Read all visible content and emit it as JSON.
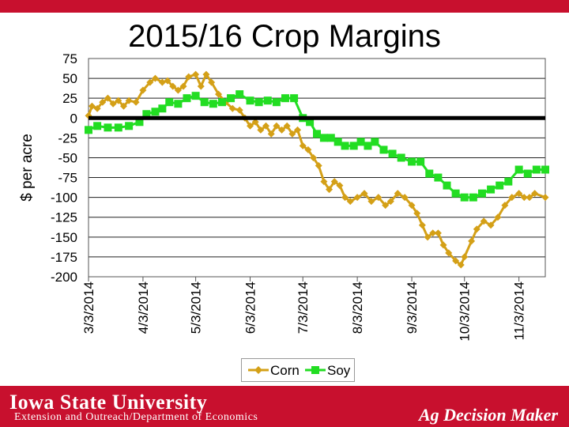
{
  "header": {
    "accent_color": "#c8102e"
  },
  "footer": {
    "university": "Iowa State University",
    "department": "Extension and Outreach/Department of Economics",
    "brand": "Ag Decision Maker",
    "background": "#c8102e"
  },
  "chart_data": {
    "type": "line",
    "title": "2015/16 Crop Margins",
    "xlabel": "",
    "ylabel": "$ per acre",
    "ylim": [
      -200,
      75
    ],
    "yticks": [
      75,
      50,
      25,
      0,
      -25,
      -50,
      -75,
      -100,
      -125,
      -150,
      -175,
      -200
    ],
    "xlim": [
      "2014-03-03",
      "2014-11-18"
    ],
    "xticks": [
      "3/3/2014",
      "4/3/2014",
      "5/3/2014",
      "6/3/2014",
      "7/3/2014",
      "8/3/2014",
      "9/3/2014",
      "10/3/2014",
      "11/3/2014"
    ],
    "xtick_dates": [
      "2014-03-03",
      "2014-04-03",
      "2014-05-03",
      "2014-06-03",
      "2014-07-03",
      "2014-08-03",
      "2014-09-03",
      "2014-10-03",
      "2014-11-03"
    ],
    "grid": "horizontal",
    "zero_line": true,
    "legend_position": "bottom",
    "series": [
      {
        "name": "Corn",
        "color": "#d4a017",
        "marker": "diamond",
        "points": [
          [
            "2014-03-03",
            3
          ],
          [
            "2014-03-05",
            15
          ],
          [
            "2014-03-08",
            12
          ],
          [
            "2014-03-11",
            20
          ],
          [
            "2014-03-14",
            25
          ],
          [
            "2014-03-17",
            18
          ],
          [
            "2014-03-20",
            22
          ],
          [
            "2014-03-23",
            15
          ],
          [
            "2014-03-26",
            22
          ],
          [
            "2014-03-30",
            20
          ],
          [
            "2014-04-03",
            35
          ],
          [
            "2014-04-07",
            45
          ],
          [
            "2014-04-10",
            50
          ],
          [
            "2014-04-14",
            45
          ],
          [
            "2014-04-17",
            47
          ],
          [
            "2014-04-20",
            40
          ],
          [
            "2014-04-23",
            35
          ],
          [
            "2014-04-26",
            40
          ],
          [
            "2014-04-29",
            52
          ],
          [
            "2014-05-03",
            55
          ],
          [
            "2014-05-06",
            40
          ],
          [
            "2014-05-09",
            55
          ],
          [
            "2014-05-12",
            45
          ],
          [
            "2014-05-16",
            30
          ],
          [
            "2014-05-20",
            20
          ],
          [
            "2014-05-24",
            12
          ],
          [
            "2014-05-28",
            10
          ],
          [
            "2014-05-31",
            0
          ],
          [
            "2014-06-03",
            -10
          ],
          [
            "2014-06-06",
            -5
          ],
          [
            "2014-06-09",
            -15
          ],
          [
            "2014-06-12",
            -10
          ],
          [
            "2014-06-15",
            -20
          ],
          [
            "2014-06-18",
            -10
          ],
          [
            "2014-06-21",
            -15
          ],
          [
            "2014-06-24",
            -10
          ],
          [
            "2014-06-27",
            -20
          ],
          [
            "2014-06-30",
            -15
          ],
          [
            "2014-07-03",
            -35
          ],
          [
            "2014-07-06",
            -40
          ],
          [
            "2014-07-09",
            -50
          ],
          [
            "2014-07-12",
            -60
          ],
          [
            "2014-07-15",
            -80
          ],
          [
            "2014-07-18",
            -90
          ],
          [
            "2014-07-21",
            -80
          ],
          [
            "2014-07-24",
            -85
          ],
          [
            "2014-07-27",
            -100
          ],
          [
            "2014-07-30",
            -105
          ],
          [
            "2014-08-03",
            -100
          ],
          [
            "2014-08-07",
            -95
          ],
          [
            "2014-08-11",
            -105
          ],
          [
            "2014-08-15",
            -100
          ],
          [
            "2014-08-19",
            -110
          ],
          [
            "2014-08-22",
            -105
          ],
          [
            "2014-08-26",
            -95
          ],
          [
            "2014-08-30",
            -100
          ],
          [
            "2014-09-03",
            -110
          ],
          [
            "2014-09-06",
            -120
          ],
          [
            "2014-09-09",
            -135
          ],
          [
            "2014-09-12",
            -150
          ],
          [
            "2014-09-15",
            -145
          ],
          [
            "2014-09-18",
            -145
          ],
          [
            "2014-09-21",
            -160
          ],
          [
            "2014-09-24",
            -170
          ],
          [
            "2014-09-28",
            -180
          ],
          [
            "2014-10-01",
            -185
          ],
          [
            "2014-10-03",
            -175
          ],
          [
            "2014-10-07",
            -155
          ],
          [
            "2014-10-10",
            -140
          ],
          [
            "2014-10-14",
            -130
          ],
          [
            "2014-10-18",
            -135
          ],
          [
            "2014-10-22",
            -125
          ],
          [
            "2014-10-26",
            -110
          ],
          [
            "2014-10-30",
            -100
          ],
          [
            "2014-11-03",
            -95
          ],
          [
            "2014-11-06",
            -100
          ],
          [
            "2014-11-09",
            -100
          ],
          [
            "2014-11-12",
            -95
          ],
          [
            "2014-11-18",
            -100
          ]
        ]
      },
      {
        "name": "Soy",
        "color": "#22dd22",
        "marker": "square",
        "points": [
          [
            "2014-03-03",
            -15
          ],
          [
            "2014-03-08",
            -10
          ],
          [
            "2014-03-14",
            -12
          ],
          [
            "2014-03-20",
            -12
          ],
          [
            "2014-03-26",
            -10
          ],
          [
            "2014-04-01",
            -5
          ],
          [
            "2014-04-05",
            5
          ],
          [
            "2014-04-10",
            8
          ],
          [
            "2014-04-14",
            12
          ],
          [
            "2014-04-18",
            20
          ],
          [
            "2014-04-23",
            18
          ],
          [
            "2014-04-28",
            25
          ],
          [
            "2014-05-03",
            28
          ],
          [
            "2014-05-08",
            20
          ],
          [
            "2014-05-13",
            18
          ],
          [
            "2014-05-18",
            20
          ],
          [
            "2014-05-23",
            25
          ],
          [
            "2014-05-28",
            30
          ],
          [
            "2014-06-03",
            22
          ],
          [
            "2014-06-08",
            20
          ],
          [
            "2014-06-13",
            22
          ],
          [
            "2014-06-18",
            20
          ],
          [
            "2014-06-23",
            25
          ],
          [
            "2014-06-28",
            25
          ],
          [
            "2014-07-03",
            0
          ],
          [
            "2014-07-07",
            -5
          ],
          [
            "2014-07-11",
            -20
          ],
          [
            "2014-07-15",
            -25
          ],
          [
            "2014-07-19",
            -25
          ],
          [
            "2014-07-23",
            -30
          ],
          [
            "2014-07-27",
            -35
          ],
          [
            "2014-08-01",
            -35
          ],
          [
            "2014-08-05",
            -30
          ],
          [
            "2014-08-09",
            -35
          ],
          [
            "2014-08-13",
            -30
          ],
          [
            "2014-08-18",
            -40
          ],
          [
            "2014-08-23",
            -45
          ],
          [
            "2014-08-28",
            -50
          ],
          [
            "2014-09-03",
            -55
          ],
          [
            "2014-09-08",
            -55
          ],
          [
            "2014-09-13",
            -70
          ],
          [
            "2014-09-18",
            -75
          ],
          [
            "2014-09-23",
            -85
          ],
          [
            "2014-09-28",
            -95
          ],
          [
            "2014-10-03",
            -100
          ],
          [
            "2014-10-08",
            -100
          ],
          [
            "2014-10-13",
            -95
          ],
          [
            "2014-10-18",
            -90
          ],
          [
            "2014-10-23",
            -85
          ],
          [
            "2014-10-28",
            -80
          ],
          [
            "2014-11-03",
            -65
          ],
          [
            "2014-11-08",
            -70
          ],
          [
            "2014-11-13",
            -65
          ],
          [
            "2014-11-18",
            -65
          ]
        ]
      }
    ]
  }
}
